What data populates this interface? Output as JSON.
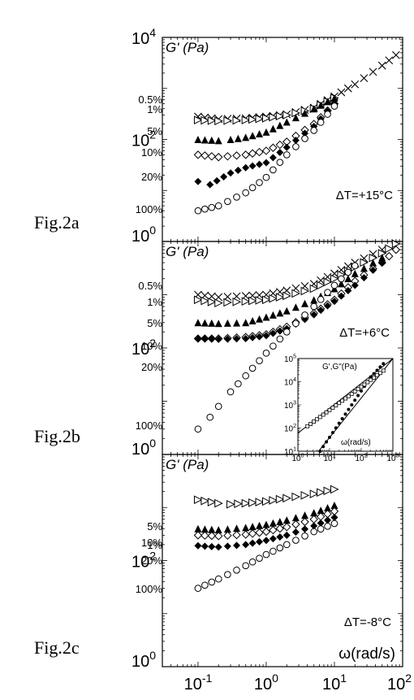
{
  "figure_labels": [
    "Fig.2a",
    "Fig.2b",
    "Fig.2c"
  ],
  "x_axis": {
    "label": "ω(rad/s)",
    "tick_labels": [
      {
        "base": "10",
        "exp": "-1",
        "value": 0.1
      },
      {
        "base": "10",
        "exp": "0",
        "value": 1
      },
      {
        "base": "10",
        "exp": "1",
        "value": 10
      },
      {
        "base": "10",
        "exp": "2",
        "value": 100
      }
    ]
  },
  "panel_ylabel": "G' (Pa)",
  "inset": {
    "ylabel": "G',G\"(Pa)",
    "xlabel": "ω(rad/s)",
    "y_ticks": [
      {
        "base": "10",
        "exp": "1"
      },
      {
        "base": "10",
        "exp": "2"
      },
      {
        "base": "10",
        "exp": "3"
      },
      {
        "base": "10",
        "exp": "4"
      },
      {
        "base": "10",
        "exp": "5"
      }
    ],
    "x_ticks": [
      {
        "base": "10",
        "exp": "0"
      },
      {
        "base": "10",
        "exp": "1"
      },
      {
        "base": "10",
        "exp": "2"
      },
      {
        "base": "10",
        "exp": "3"
      }
    ]
  },
  "chart_data": [
    {
      "type": "scatter",
      "figure_label": "Fig.2a",
      "annotation": "ΔT=+15°C",
      "ylabel": "G' (Pa)",
      "xscale": "log",
      "yscale": "log",
      "xlim": [
        0.03,
        100
      ],
      "ylim": [
        1,
        10000
      ],
      "y_tick_labels": [
        {
          "base": "10",
          "exp": "0",
          "value": 1
        },
        {
          "base": "10",
          "exp": "2",
          "value": 100
        },
        {
          "base": "10",
          "exp": "4",
          "value": 10000
        }
      ],
      "series": [
        {
          "name": "0.5%",
          "marker": "x",
          "x": [
            0.1,
            0.2,
            0.5,
            1,
            2,
            5,
            10,
            20,
            50,
            80
          ],
          "y": [
            280,
            250,
            260,
            280,
            310,
            420,
            700,
            1200,
            2800,
            4500
          ]
        },
        {
          "name": "1%",
          "marker": "triangle-right-open",
          "x": [
            0.1,
            0.2,
            0.5,
            1,
            2,
            5,
            10
          ],
          "y": [
            240,
            230,
            240,
            260,
            300,
            400,
            650
          ]
        },
        {
          "name": "5%",
          "marker": "triangle-up-filled",
          "x": [
            0.1,
            0.2,
            0.3,
            0.5,
            1,
            2,
            5,
            10
          ],
          "y": [
            100,
            95,
            100,
            110,
            140,
            220,
            400,
            650
          ]
        },
        {
          "name": "10%",
          "marker": "diamond-open",
          "x": [
            0.1,
            0.2,
            0.5,
            1,
            2,
            5,
            10
          ],
          "y": [
            50,
            45,
            50,
            60,
            90,
            200,
            500
          ]
        },
        {
          "name": "20%",
          "marker": "diamond-filled",
          "x": [
            0.1,
            0.15,
            0.3,
            0.5,
            1,
            2,
            5,
            10
          ],
          "y": [
            15,
            13,
            22,
            28,
            35,
            70,
            180,
            500
          ]
        },
        {
          "name": "100%",
          "marker": "circle-open",
          "x": [
            0.1,
            0.2,
            0.5,
            1,
            2,
            5,
            10
          ],
          "y": [
            4,
            5,
            9,
            18,
            50,
            150,
            450
          ]
        }
      ]
    },
    {
      "type": "scatter",
      "figure_label": "Fig.2b",
      "annotation": "ΔT=+6°C",
      "ylabel": "G' (Pa)",
      "xscale": "log",
      "yscale": "log",
      "xlim": [
        0.03,
        100
      ],
      "ylim": [
        1,
        10000
      ],
      "y_tick_labels": [
        {
          "base": "10",
          "exp": "0",
          "value": 1
        },
        {
          "base": "10",
          "exp": "2",
          "value": 100
        }
      ],
      "series": [
        {
          "name": "0.5%",
          "marker": "x",
          "x": [
            0.1,
            0.2,
            0.5,
            1,
            2,
            5,
            10,
            20,
            50
          ],
          "y": [
            1000,
            900,
            950,
            1000,
            1200,
            1600,
            2500,
            4000,
            7000
          ]
        },
        {
          "name": "1%",
          "marker": "triangle-right-open",
          "x": [
            0.1,
            0.2,
            0.5,
            1,
            2,
            5,
            10,
            20,
            50,
            80
          ],
          "y": [
            800,
            700,
            750,
            800,
            950,
            1300,
            2000,
            3300,
            6000,
            9000
          ]
        },
        {
          "name": "5%",
          "marker": "triangle-up-filled",
          "x": [
            0.1,
            0.2,
            0.5,
            1,
            2,
            5,
            10,
            20,
            50
          ],
          "y": [
            300,
            290,
            300,
            380,
            500,
            800,
            1300,
            2500,
            5000
          ]
        },
        {
          "name": "10%",
          "marker": "diamond-open",
          "x": [
            0.1,
            0.2,
            0.5,
            1,
            2,
            5,
            10,
            20,
            50,
            80
          ],
          "y": [
            150,
            150,
            160,
            180,
            250,
            450,
            800,
            1800,
            4000,
            7000
          ]
        },
        {
          "name": "20%",
          "marker": "diamond-filled",
          "x": [
            0.1,
            0.2,
            0.5,
            1,
            2,
            5,
            10,
            20,
            50
          ],
          "y": [
            150,
            145,
            150,
            170,
            230,
            420,
            750,
            1500,
            4000
          ]
        },
        {
          "name": "100%",
          "marker": "circle-open",
          "x": [
            0.1,
            0.15,
            0.2,
            0.3,
            0.5,
            1,
            2,
            5,
            10,
            20
          ],
          "y": [
            3,
            5,
            8,
            15,
            30,
            80,
            200,
            600,
            1500,
            3500
          ]
        }
      ],
      "inset": {
        "xlim": [
          1,
          1000
        ],
        "ylim": [
          10,
          100000
        ],
        "series": [
          {
            "name": "G'",
            "marker": "circle-filled",
            "x": [
              5,
              10,
              20,
              50,
              100,
              200,
              500
            ],
            "y": [
              10,
              40,
              160,
              1000,
              4000,
              16000,
              60000
            ]
          },
          {
            "name": "G\"",
            "marker": "square-open",
            "x": [
              2,
              5,
              10,
              20,
              50,
              100,
              200,
              500
            ],
            "y": [
              120,
              300,
              600,
              1200,
              3000,
              6000,
              12000,
              30000
            ]
          }
        ]
      }
    },
    {
      "type": "scatter",
      "figure_label": "Fig.2c",
      "annotation": "ΔT=-8°C",
      "ylabel": "G' (Pa)",
      "xlabel": "ω(rad/s)",
      "xscale": "log",
      "yscale": "log",
      "xlim": [
        0.03,
        100
      ],
      "ylim": [
        1,
        10000
      ],
      "y_tick_labels": [
        {
          "base": "10",
          "exp": "0",
          "value": 1
        },
        {
          "base": "10",
          "exp": "2",
          "value": 100
        }
      ],
      "series": [
        {
          "name": "1%",
          "marker": "triangle-right-open",
          "x": [
            0.1,
            0.2,
            0.3,
            0.5,
            1,
            2,
            5,
            10
          ],
          "y": [
            1400,
            1200,
            1150,
            1200,
            1300,
            1500,
            1800,
            2200
          ]
        },
        {
          "name": "5%",
          "marker": "triangle-up-filled",
          "x": [
            0.1,
            0.2,
            0.5,
            1,
            2,
            5,
            10
          ],
          "y": [
            400,
            380,
            420,
            480,
            580,
            800,
            1100
          ]
        },
        {
          "name": "10%",
          "marker": "diamond-open",
          "x": [
            0.1,
            0.2,
            0.5,
            1,
            2,
            5,
            10
          ],
          "y": [
            300,
            290,
            310,
            350,
            430,
            600,
            850
          ]
        },
        {
          "name": "20%",
          "marker": "diamond-filled",
          "x": [
            0.1,
            0.2,
            0.5,
            1,
            2,
            5,
            10
          ],
          "y": [
            190,
            180,
            200,
            240,
            300,
            450,
            650
          ]
        },
        {
          "name": "100%",
          "marker": "circle-open",
          "x": [
            0.1,
            0.2,
            0.5,
            1,
            2,
            5,
            10
          ],
          "y": [
            30,
            45,
            80,
            130,
            200,
            350,
            500
          ]
        }
      ]
    }
  ]
}
